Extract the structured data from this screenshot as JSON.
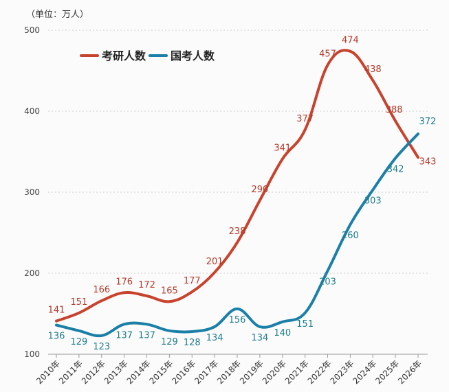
{
  "unit_label": "（单位：万人）",
  "chart_data": {
    "type": "line",
    "title": "",
    "xlabel": "",
    "ylabel": "万人",
    "ylim": [
      100,
      500
    ],
    "yticks": [
      100,
      200,
      300,
      400,
      500
    ],
    "categories": [
      "2010年",
      "2011年",
      "2012年",
      "2013年",
      "2014年",
      "2015年",
      "2016年",
      "2017年",
      "2018年",
      "2019年",
      "2020年",
      "2021年",
      "2022年",
      "2023年",
      "2024年",
      "2025年",
      "2026年"
    ],
    "series": [
      {
        "name": "考研人数",
        "color": "#c8432e",
        "values": [
          141,
          151,
          166,
          176,
          172,
          165,
          177,
          201,
          238,
          290,
          341,
          377,
          457,
          474,
          438,
          388,
          343
        ],
        "labels": [
          "141",
          "151",
          "166",
          "176",
          "172",
          "165",
          "177",
          "201",
          "238",
          "290",
          "341",
          "377",
          "457",
          "474",
          "438",
          "388",
          "343"
        ]
      },
      {
        "name": "国考人数",
        "color": "#1b7fa8",
        "values": [
          136,
          129,
          123,
          137,
          137,
          129,
          128,
          134,
          156,
          134,
          140,
          151,
          203,
          260,
          303,
          342,
          372
        ],
        "labels": [
          "136",
          "129",
          "123",
          "137",
          "137",
          "129",
          "128",
          "134",
          "156",
          "134",
          "140",
          "151",
          "203",
          "260",
          "303",
          "342",
          "372"
        ]
      }
    ],
    "legend": "top-left",
    "grid": "horizontal-dotted"
  }
}
